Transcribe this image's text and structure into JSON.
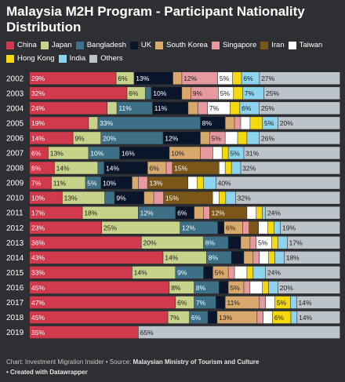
{
  "footer": {
    "chart_prefix": "Chart: Investment Migration Insider • Source:",
    "source": "Malaysian Ministry of Tourism and Culture",
    "created": "• Created with Datawrapper"
  },
  "chart_data": {
    "type": "bar",
    "orientation": "horizontal",
    "stacked": true,
    "normalized": true,
    "title": "Malaysia M2H Program - Participant Nationality Distribution",
    "legend_position": "top",
    "value_unit": "%",
    "categories": [
      "2002",
      "2003",
      "2004",
      "2005",
      "2006",
      "2007",
      "2008",
      "2009",
      "2010",
      "2011",
      "2012",
      "2013",
      "2014",
      "2015",
      "2016",
      "2017",
      "2018",
      "2019"
    ],
    "series": [
      {
        "name": "China",
        "color": "#d13a4d",
        "values": [
          29,
          32,
          24,
          19,
          14,
          6,
          8,
          7,
          10,
          17,
          23,
          36,
          43,
          33,
          45,
          47,
          45,
          35
        ]
      },
      {
        "name": "Japan",
        "color": "#c8d38a",
        "values": [
          6,
          6,
          3,
          3,
          9,
          13,
          14,
          11,
          13,
          18,
          25,
          20,
          14,
          14,
          8,
          6,
          7,
          0
        ]
      },
      {
        "name": "Bangladesh",
        "color": "#3d6f86",
        "values": [
          0,
          2,
          11,
          33,
          20,
          10,
          2,
          5,
          3,
          12,
          12,
          8,
          8,
          9,
          8,
          7,
          6,
          0
        ]
      },
      {
        "name": "UK",
        "color": "#0b1529",
        "values": [
          13,
          10,
          11,
          8,
          12,
          16,
          14,
          10,
          9,
          6,
          2,
          4,
          4,
          3,
          3,
          3,
          3,
          0
        ]
      },
      {
        "name": "South Korea",
        "color": "#d9a86d",
        "values": [
          3,
          3,
          3,
          3,
          3,
          10,
          6,
          2,
          3,
          3,
          6,
          3,
          3,
          5,
          5,
          11,
          13,
          0
        ]
      },
      {
        "name": "Singapore",
        "color": "#e69a9f",
        "values": [
          12,
          9,
          3,
          2,
          5,
          4,
          2,
          3,
          3,
          2,
          2,
          2,
          2,
          2,
          2,
          2,
          2,
          0
        ]
      },
      {
        "name": "Iran",
        "color": "#7a5718",
        "values": [
          0,
          0,
          0,
          0,
          0,
          0,
          15,
          13,
          15,
          12,
          3,
          0,
          0,
          0,
          0,
          0,
          0,
          0
        ]
      },
      {
        "name": "Taiwan",
        "color": "#ffffff",
        "values": [
          5,
          5,
          7,
          3,
          4,
          3,
          2,
          3,
          2,
          3,
          3,
          5,
          3,
          4,
          4,
          3,
          3,
          0
        ]
      },
      {
        "name": "Hong Kong",
        "color": "#f5d90f",
        "values": [
          3,
          3,
          3,
          4,
          3,
          2,
          2,
          2,
          2,
          2,
          2,
          2,
          2,
          2,
          2,
          5,
          6,
          0
        ]
      },
      {
        "name": "India",
        "color": "#8fd4ef",
        "values": [
          6,
          7,
          6,
          5,
          4,
          5,
          3,
          4,
          3,
          1,
          2,
          3,
          3,
          4,
          3,
          2,
          2,
          0
        ]
      },
      {
        "name": "Others",
        "color": "#bcc3c9",
        "values": [
          27,
          25,
          25,
          20,
          26,
          31,
          32,
          40,
          32,
          24,
          19,
          17,
          18,
          24,
          20,
          14,
          14,
          65
        ]
      }
    ]
  }
}
